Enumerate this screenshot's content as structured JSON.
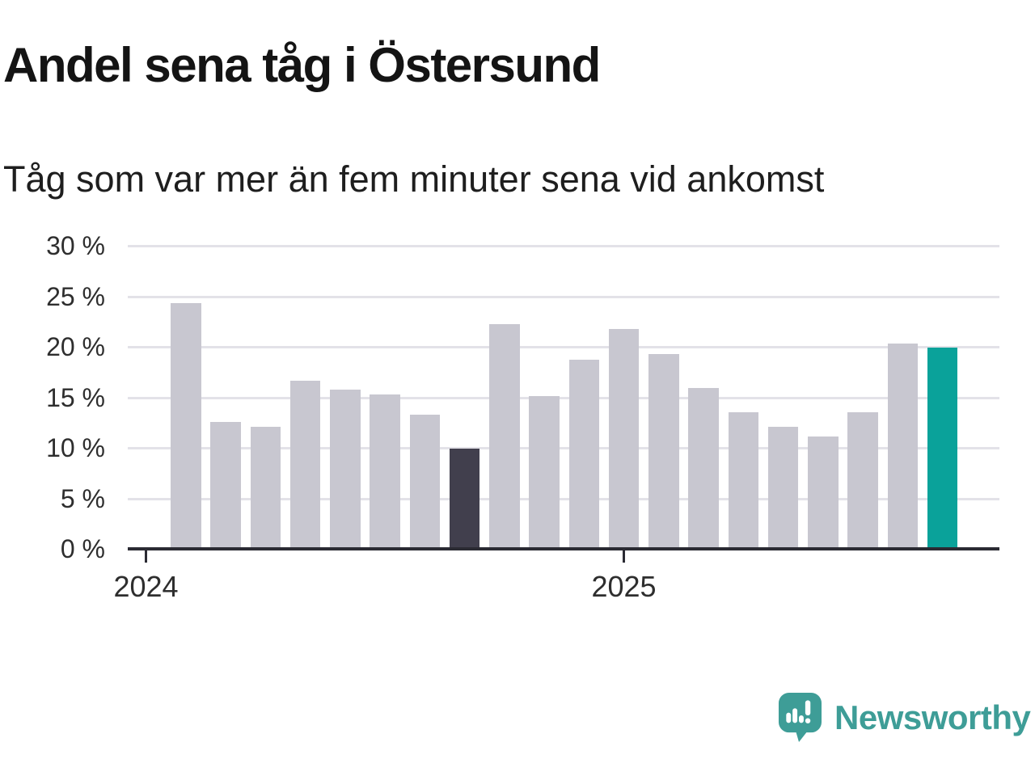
{
  "header": {
    "title": "Andel sena tåg i Östersund",
    "subtitle": "Tåg som var mer än fem minuter sena vid ankomst"
  },
  "chart_data": {
    "type": "bar",
    "title": "Andel sena tåg i Östersund",
    "subtitle": "Tåg som var mer än fem minuter sena vid ankomst",
    "unit": "%",
    "ylim": [
      0,
      30
    ],
    "grid": true,
    "legend": "none",
    "categories": [
      "2024-02",
      "2024-03",
      "2024-04",
      "2024-05",
      "2024-06",
      "2024-07",
      "2024-08",
      "2024-09",
      "2024-10",
      "2024-11",
      "2024-12",
      "2025-01",
      "2025-02",
      "2025-03",
      "2025-04",
      "2025-05",
      "2025-06",
      "2025-07",
      "2025-08",
      "2025-09"
    ],
    "values": [
      24.2,
      12.4,
      11.9,
      16.5,
      15.6,
      15.1,
      13.1,
      9.8,
      22.1,
      15.0,
      18.6,
      21.6,
      19.1,
      15.8,
      13.4,
      11.9,
      11.0,
      13.4,
      20.2,
      19.8
    ],
    "y_ticks": [
      {
        "value": 30,
        "label": "30 %"
      },
      {
        "value": 25,
        "label": "25 %"
      },
      {
        "value": 20,
        "label": "20 %"
      },
      {
        "value": 15,
        "label": "15 %"
      },
      {
        "value": 10,
        "label": "10 %"
      },
      {
        "value": 5,
        "label": "5 %"
      },
      {
        "value": 0,
        "label": "0 %"
      }
    ],
    "x_ticks": [
      {
        "label": "2024",
        "category_index": -1
      },
      {
        "label": "2025",
        "category_index": 11
      }
    ],
    "highlights": {
      "previous_year_index": 7,
      "latest_index": 19
    },
    "colors": {
      "bar_default": "#c8c7d0",
      "bar_previous": "#413f4d",
      "bar_latest": "#0aa29a"
    }
  },
  "footer": {
    "brand": "Newsworthy"
  },
  "colors": {
    "accent_teal": "#3e9d97",
    "axis": "#2b2b33",
    "gridline": "#e3e2e8",
    "title_text": "#141414"
  }
}
